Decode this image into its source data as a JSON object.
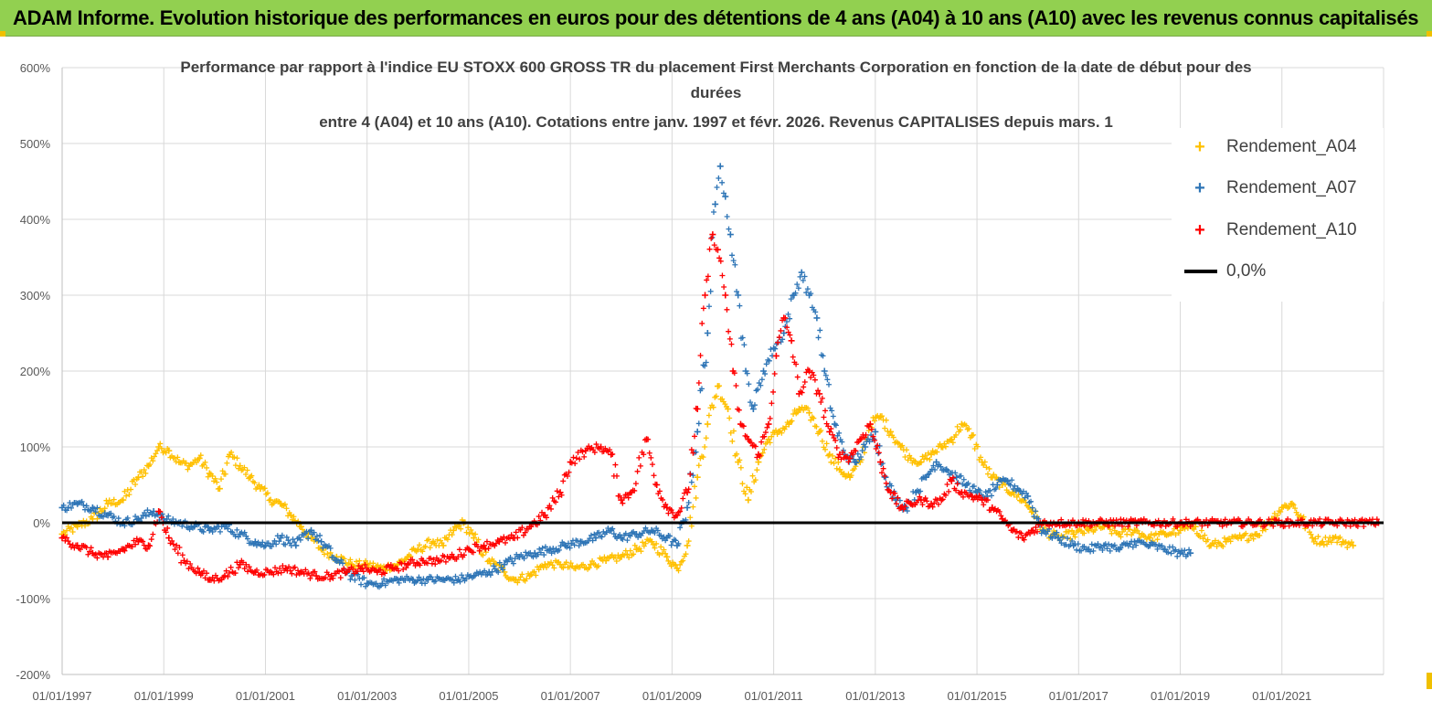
{
  "header": {
    "banner": "ADAM Informe. Evolution historique des performances en euros pour des détentions de 4 ans (A04) à 10 ans (A10) avec les revenus connus capitalisés",
    "banner_color": "#92d050"
  },
  "chart_data": {
    "type": "scatter",
    "title_lines": [
      "Performance par rapport à l'indice EU STOXX 600 GROSS TR  du placement First Merchants Corporation en fonction de la date de début pour des",
      "durées",
      "entre 4 (A04) et 10 ans (A10).  Cotations entre janv. 1997 et févr.  2026. Revenus CAPITALISES depuis mars. 1"
    ],
    "y_axis": {
      "min": -200,
      "max": 600,
      "step": 100,
      "tick_labels": [
        "-200%",
        "-100%",
        "0%",
        "100%",
        "200%",
        "300%",
        "400%",
        "500%",
        "600%"
      ]
    },
    "x_axis": {
      "min_year": 1997,
      "max_year": 2023,
      "tick_labels": [
        "01/01/1997",
        "01/01/1999",
        "01/01/2001",
        "01/01/2003",
        "01/01/2005",
        "01/01/2007",
        "01/01/2009",
        "01/01/2011",
        "01/01/2013",
        "01/01/2015",
        "01/01/2017",
        "01/01/2019",
        "01/01/2021"
      ]
    },
    "legend": {
      "position": "top-right",
      "items": [
        {
          "label": "Rendement_A04",
          "marker": "+",
          "color": "#ffc000"
        },
        {
          "label": "Rendement_A07",
          "marker": "+",
          "color": "#2e75b6"
        },
        {
          "label": "Rendement_A10",
          "marker": "+",
          "color": "#ff0000"
        },
        {
          "label": "0,0%",
          "marker": "line",
          "color": "#000000"
        }
      ]
    },
    "series": [
      {
        "name": "Rendement_A04",
        "color": "#ffc000",
        "points": [
          [
            1997.0,
            -15
          ],
          [
            1997.3,
            -5
          ],
          [
            1997.6,
            5
          ],
          [
            1997.9,
            25
          ],
          [
            1998.2,
            30
          ],
          [
            1998.5,
            60
          ],
          [
            1998.7,
            75
          ],
          [
            1998.9,
            100
          ],
          [
            1999.1,
            95
          ],
          [
            1999.3,
            80
          ],
          [
            1999.5,
            75
          ],
          [
            1999.7,
            85
          ],
          [
            1999.9,
            65
          ],
          [
            2000.1,
            45
          ],
          [
            2000.3,
            90
          ],
          [
            2000.5,
            75
          ],
          [
            2000.7,
            60
          ],
          [
            2000.9,
            45
          ],
          [
            2001.1,
            30
          ],
          [
            2001.3,
            25
          ],
          [
            2001.5,
            10
          ],
          [
            2001.7,
            -5
          ],
          [
            2001.9,
            -20
          ],
          [
            2002.1,
            -35
          ],
          [
            2002.4,
            -45
          ],
          [
            2002.7,
            -55
          ],
          [
            2003.0,
            -55
          ],
          [
            2003.3,
            -60
          ],
          [
            2003.6,
            -55
          ],
          [
            2003.8,
            -45
          ],
          [
            2004.0,
            -35
          ],
          [
            2004.3,
            -25
          ],
          [
            2004.5,
            -30
          ],
          [
            2004.7,
            -10
          ],
          [
            2004.9,
            0
          ],
          [
            2005.1,
            -20
          ],
          [
            2005.4,
            -50
          ],
          [
            2005.7,
            -65
          ],
          [
            2005.9,
            -75
          ],
          [
            2006.2,
            -70
          ],
          [
            2006.5,
            -55
          ],
          [
            2006.8,
            -55
          ],
          [
            2007.1,
            -60
          ],
          [
            2007.4,
            -55
          ],
          [
            2007.7,
            -50
          ],
          [
            2008.0,
            -45
          ],
          [
            2008.3,
            -35
          ],
          [
            2008.6,
            -25
          ],
          [
            2008.9,
            -45
          ],
          [
            2009.1,
            -60
          ],
          [
            2009.3,
            -30
          ],
          [
            2009.5,
            60
          ],
          [
            2009.7,
            130
          ],
          [
            2009.9,
            180
          ],
          [
            2010.1,
            150
          ],
          [
            2010.3,
            80
          ],
          [
            2010.5,
            30
          ],
          [
            2010.7,
            80
          ],
          [
            2010.9,
            110
          ],
          [
            2011.1,
            120
          ],
          [
            2011.3,
            130
          ],
          [
            2011.5,
            150
          ],
          [
            2011.7,
            145
          ],
          [
            2011.9,
            120
          ],
          [
            2012.1,
            90
          ],
          [
            2012.3,
            70
          ],
          [
            2012.5,
            60
          ],
          [
            2012.7,
            80
          ],
          [
            2012.9,
            130
          ],
          [
            2013.1,
            140
          ],
          [
            2013.3,
            120
          ],
          [
            2013.5,
            100
          ],
          [
            2013.7,
            85
          ],
          [
            2013.9,
            80
          ],
          [
            2014.1,
            90
          ],
          [
            2014.3,
            100
          ],
          [
            2014.5,
            110
          ],
          [
            2014.7,
            130
          ],
          [
            2014.9,
            115
          ],
          [
            2015.1,
            80
          ],
          [
            2015.3,
            60
          ],
          [
            2015.5,
            50
          ],
          [
            2015.7,
            40
          ],
          [
            2015.9,
            30
          ],
          [
            2016.1,
            15
          ],
          [
            2016.3,
            -10
          ],
          [
            2016.6,
            -20
          ],
          [
            2016.9,
            -15
          ],
          [
            2017.2,
            -10
          ],
          [
            2017.5,
            -5
          ],
          [
            2017.8,
            -15
          ],
          [
            2018.1,
            -10
          ],
          [
            2018.4,
            -20
          ],
          [
            2018.7,
            -15
          ],
          [
            2019.0,
            -10
          ],
          [
            2019.3,
            -5
          ],
          [
            2019.6,
            -30
          ],
          [
            2019.9,
            -25
          ],
          [
            2020.2,
            -20
          ],
          [
            2020.5,
            -15
          ],
          [
            2020.8,
            5
          ],
          [
            2021.0,
            20
          ],
          [
            2021.2,
            25
          ],
          [
            2021.4,
            5
          ],
          [
            2021.6,
            -20
          ],
          [
            2021.8,
            -25
          ],
          [
            2022.0,
            -20
          ],
          [
            2022.2,
            -25
          ],
          [
            2022.4,
            -30
          ]
        ]
      },
      {
        "name": "Rendement_A07",
        "color": "#2e75b6",
        "points": [
          [
            1997.0,
            20
          ],
          [
            1997.3,
            25
          ],
          [
            1997.6,
            20
          ],
          [
            1997.9,
            10
          ],
          [
            1998.2,
            0
          ],
          [
            1998.5,
            5
          ],
          [
            1998.8,
            15
          ],
          [
            1999.0,
            5
          ],
          [
            1999.3,
            0
          ],
          [
            1999.6,
            -5
          ],
          [
            1999.9,
            -10
          ],
          [
            2000.2,
            -5
          ],
          [
            2000.5,
            -15
          ],
          [
            2000.8,
            -25
          ],
          [
            2001.0,
            -30
          ],
          [
            2001.3,
            -20
          ],
          [
            2001.6,
            -30
          ],
          [
            2001.9,
            -10
          ],
          [
            2002.1,
            -25
          ],
          [
            2002.4,
            -50
          ],
          [
            2002.7,
            -70
          ],
          [
            2003.0,
            -80
          ],
          [
            2003.3,
            -80
          ],
          [
            2003.6,
            -75
          ],
          [
            2003.9,
            -75
          ],
          [
            2004.2,
            -75
          ],
          [
            2004.5,
            -75
          ],
          [
            2004.8,
            -75
          ],
          [
            2005.1,
            -70
          ],
          [
            2005.4,
            -65
          ],
          [
            2005.7,
            -55
          ],
          [
            2006.0,
            -45
          ],
          [
            2006.3,
            -40
          ],
          [
            2006.6,
            -35
          ],
          [
            2006.9,
            -30
          ],
          [
            2007.2,
            -25
          ],
          [
            2007.5,
            -20
          ],
          [
            2007.8,
            -10
          ],
          [
            2008.0,
            -20
          ],
          [
            2008.3,
            -15
          ],
          [
            2008.6,
            -10
          ],
          [
            2008.9,
            -20
          ],
          [
            2009.1,
            -30
          ],
          [
            2009.3,
            20
          ],
          [
            2009.5,
            120
          ],
          [
            2009.7,
            250
          ],
          [
            2009.85,
            420
          ],
          [
            2009.95,
            470
          ],
          [
            2010.05,
            430
          ],
          [
            2010.15,
            380
          ],
          [
            2010.3,
            300
          ],
          [
            2010.45,
            200
          ],
          [
            2010.6,
            150
          ],
          [
            2010.8,
            200
          ],
          [
            2011.0,
            230
          ],
          [
            2011.2,
            250
          ],
          [
            2011.4,
            300
          ],
          [
            2011.55,
            330
          ],
          [
            2011.7,
            300
          ],
          [
            2011.85,
            270
          ],
          [
            2012.0,
            200
          ],
          [
            2012.2,
            130
          ],
          [
            2012.4,
            90
          ],
          [
            2012.6,
            80
          ],
          [
            2012.8,
            100
          ],
          [
            2013.0,
            120
          ],
          [
            2013.2,
            60
          ],
          [
            2013.4,
            30
          ],
          [
            2013.6,
            20
          ],
          [
            2013.8,
            40
          ],
          [
            2014.0,
            60
          ],
          [
            2014.2,
            80
          ],
          [
            2014.4,
            70
          ],
          [
            2014.6,
            60
          ],
          [
            2014.8,
            50
          ],
          [
            2015.0,
            40
          ],
          [
            2015.2,
            35
          ],
          [
            2015.4,
            50
          ],
          [
            2015.6,
            55
          ],
          [
            2015.8,
            45
          ],
          [
            2016.0,
            35
          ],
          [
            2016.3,
            -10
          ],
          [
            2016.6,
            -20
          ],
          [
            2016.9,
            -30
          ],
          [
            2017.2,
            -35
          ],
          [
            2017.5,
            -30
          ],
          [
            2017.8,
            -35
          ],
          [
            2018.1,
            -25
          ],
          [
            2018.4,
            -30
          ],
          [
            2018.7,
            -35
          ],
          [
            2019.0,
            -40
          ],
          [
            2019.2,
            -40
          ]
        ]
      },
      {
        "name": "Rendement_A10",
        "color": "#ff0000",
        "points": [
          [
            1997.0,
            -20
          ],
          [
            1997.3,
            -30
          ],
          [
            1997.6,
            -40
          ],
          [
            1997.9,
            -45
          ],
          [
            1998.2,
            -35
          ],
          [
            1998.5,
            -25
          ],
          [
            1998.7,
            -30
          ],
          [
            1998.9,
            15
          ],
          [
            1999.1,
            -20
          ],
          [
            1999.4,
            -50
          ],
          [
            1999.7,
            -65
          ],
          [
            1999.9,
            -75
          ],
          [
            2000.2,
            -70
          ],
          [
            2000.5,
            -55
          ],
          [
            2000.8,
            -65
          ],
          [
            2001.1,
            -65
          ],
          [
            2001.4,
            -60
          ],
          [
            2001.7,
            -65
          ],
          [
            2002.0,
            -70
          ],
          [
            2002.3,
            -70
          ],
          [
            2002.6,
            -65
          ],
          [
            2002.9,
            -60
          ],
          [
            2003.2,
            -65
          ],
          [
            2003.5,
            -60
          ],
          [
            2003.8,
            -55
          ],
          [
            2004.1,
            -50
          ],
          [
            2004.4,
            -50
          ],
          [
            2004.7,
            -45
          ],
          [
            2005.0,
            -35
          ],
          [
            2005.3,
            -30
          ],
          [
            2005.6,
            -25
          ],
          [
            2005.9,
            -20
          ],
          [
            2006.2,
            -5
          ],
          [
            2006.5,
            10
          ],
          [
            2006.8,
            40
          ],
          [
            2007.0,
            80
          ],
          [
            2007.3,
            95
          ],
          [
            2007.6,
            100
          ],
          [
            2007.8,
            90
          ],
          [
            2008.0,
            30
          ],
          [
            2008.2,
            40
          ],
          [
            2008.5,
            110
          ],
          [
            2008.7,
            50
          ],
          [
            2008.9,
            20
          ],
          [
            2009.1,
            10
          ],
          [
            2009.3,
            40
          ],
          [
            2009.5,
            150
          ],
          [
            2009.65,
            300
          ],
          [
            2009.8,
            380
          ],
          [
            2009.9,
            360
          ],
          [
            2010.05,
            300
          ],
          [
            2010.2,
            200
          ],
          [
            2010.35,
            130
          ],
          [
            2010.5,
            110
          ],
          [
            2010.7,
            90
          ],
          [
            2010.9,
            130
          ],
          [
            2011.05,
            220
          ],
          [
            2011.2,
            270
          ],
          [
            2011.35,
            240
          ],
          [
            2011.5,
            170
          ],
          [
            2011.7,
            200
          ],
          [
            2011.9,
            170
          ],
          [
            2012.1,
            120
          ],
          [
            2012.3,
            90
          ],
          [
            2012.5,
            85
          ],
          [
            2012.7,
            110
          ],
          [
            2012.9,
            130
          ],
          [
            2013.1,
            80
          ],
          [
            2013.3,
            40
          ],
          [
            2013.5,
            20
          ],
          [
            2013.7,
            25
          ],
          [
            2013.9,
            30
          ],
          [
            2014.1,
            25
          ],
          [
            2014.3,
            30
          ],
          [
            2014.5,
            55
          ],
          [
            2014.7,
            40
          ],
          [
            2014.9,
            35
          ],
          [
            2015.1,
            30
          ],
          [
            2015.3,
            20
          ],
          [
            2015.5,
            5
          ],
          [
            2015.7,
            -10
          ],
          [
            2015.9,
            -20
          ],
          [
            2016.1,
            -10
          ],
          [
            2016.3,
            0
          ],
          [
            2016.6,
            0
          ],
          [
            2017.0,
            0
          ],
          [
            2018.0,
            0
          ],
          [
            2019.0,
            0
          ],
          [
            2020.0,
            0
          ],
          [
            2021.0,
            0
          ],
          [
            2022.0,
            0
          ],
          [
            2022.9,
            0
          ]
        ]
      }
    ]
  }
}
